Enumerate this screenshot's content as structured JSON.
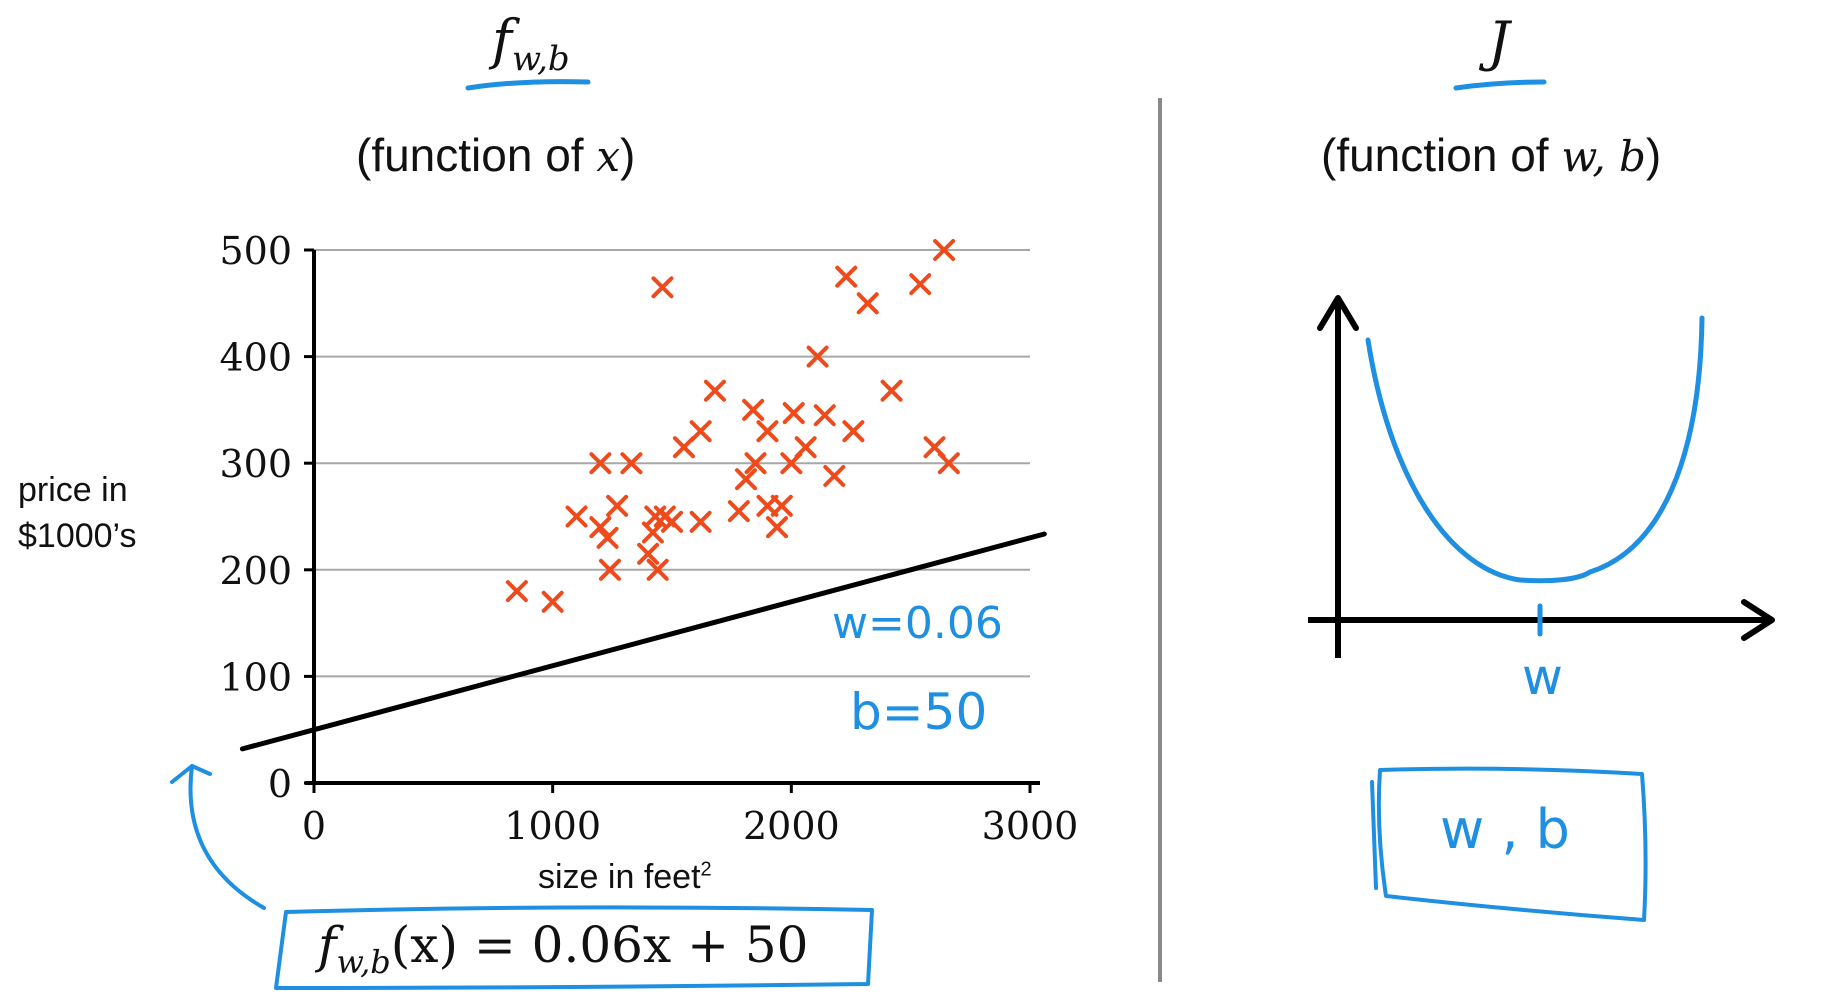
{
  "left_panel": {
    "func_symbol": "f",
    "func_subscript": "w,b",
    "heading_prefix": "(function of ",
    "heading_var": "x",
    "heading_suffix": ")",
    "ylabel_line1": "price in",
    "ylabel_line2": "$1000’s",
    "xlabel": "size in feet",
    "xlabel_sup": "2",
    "annotation_w": "w=0.06",
    "annotation_b": "b=50",
    "formula_f": "f",
    "formula_sub": "w,b",
    "formula_rest": "(x) = 0.06x + 50"
  },
  "right_panel": {
    "cost_symbol": "J",
    "heading_prefix": "(function of ",
    "heading_var": "w, b",
    "heading_suffix": ")",
    "axis_label": "w",
    "box_label": "w , b"
  },
  "chart_data": [
    {
      "type": "scatter",
      "title": "",
      "xlabel": "size in feet²",
      "ylabel": "price in $1000’s",
      "xlim": [
        0,
        3000
      ],
      "ylim": [
        0,
        500
      ],
      "xticks": [
        "0",
        "1000",
        "2000",
        "3000"
      ],
      "yticks": [
        "0",
        "100",
        "200",
        "300",
        "400",
        "500"
      ],
      "grid": "horizontal",
      "marker": "x",
      "color": "#ef4a1b",
      "points": [
        [
          850,
          180
        ],
        [
          1000,
          170
        ],
        [
          1100,
          250
        ],
        [
          1200,
          300
        ],
        [
          1200,
          240
        ],
        [
          1230,
          230
        ],
        [
          1240,
          200
        ],
        [
          1270,
          260
        ],
        [
          1330,
          300
        ],
        [
          1400,
          215
        ],
        [
          1420,
          235
        ],
        [
          1430,
          250
        ],
        [
          1440,
          200
        ],
        [
          1460,
          465
        ],
        [
          1470,
          250
        ],
        [
          1500,
          245
        ],
        [
          1550,
          315
        ],
        [
          1620,
          330
        ],
        [
          1620,
          245
        ],
        [
          1680,
          368
        ],
        [
          1780,
          255
        ],
        [
          1810,
          285
        ],
        [
          1840,
          350
        ],
        [
          1850,
          300
        ],
        [
          1900,
          330
        ],
        [
          1900,
          260
        ],
        [
          1940,
          240
        ],
        [
          1960,
          260
        ],
        [
          2000,
          300
        ],
        [
          2010,
          347
        ],
        [
          2060,
          315
        ],
        [
          2110,
          400
        ],
        [
          2140,
          345
        ],
        [
          2180,
          288
        ],
        [
          2230,
          475
        ],
        [
          2260,
          330
        ],
        [
          2320,
          450
        ],
        [
          2420,
          368
        ],
        [
          2540,
          468
        ],
        [
          2600,
          315
        ],
        [
          2640,
          500
        ],
        [
          2660,
          300
        ]
      ],
      "line": {
        "label": "f(x) = 0.06x + 50",
        "w": 0.06,
        "b": 50,
        "x_range": [
          -300,
          3060
        ],
        "color": "#000000"
      }
    },
    {
      "type": "line",
      "title": "",
      "xlabel": "w",
      "ylabel": "J",
      "shape": "U-shaped convex curve with minimum at w",
      "color": "#1e8fe1"
    }
  ]
}
